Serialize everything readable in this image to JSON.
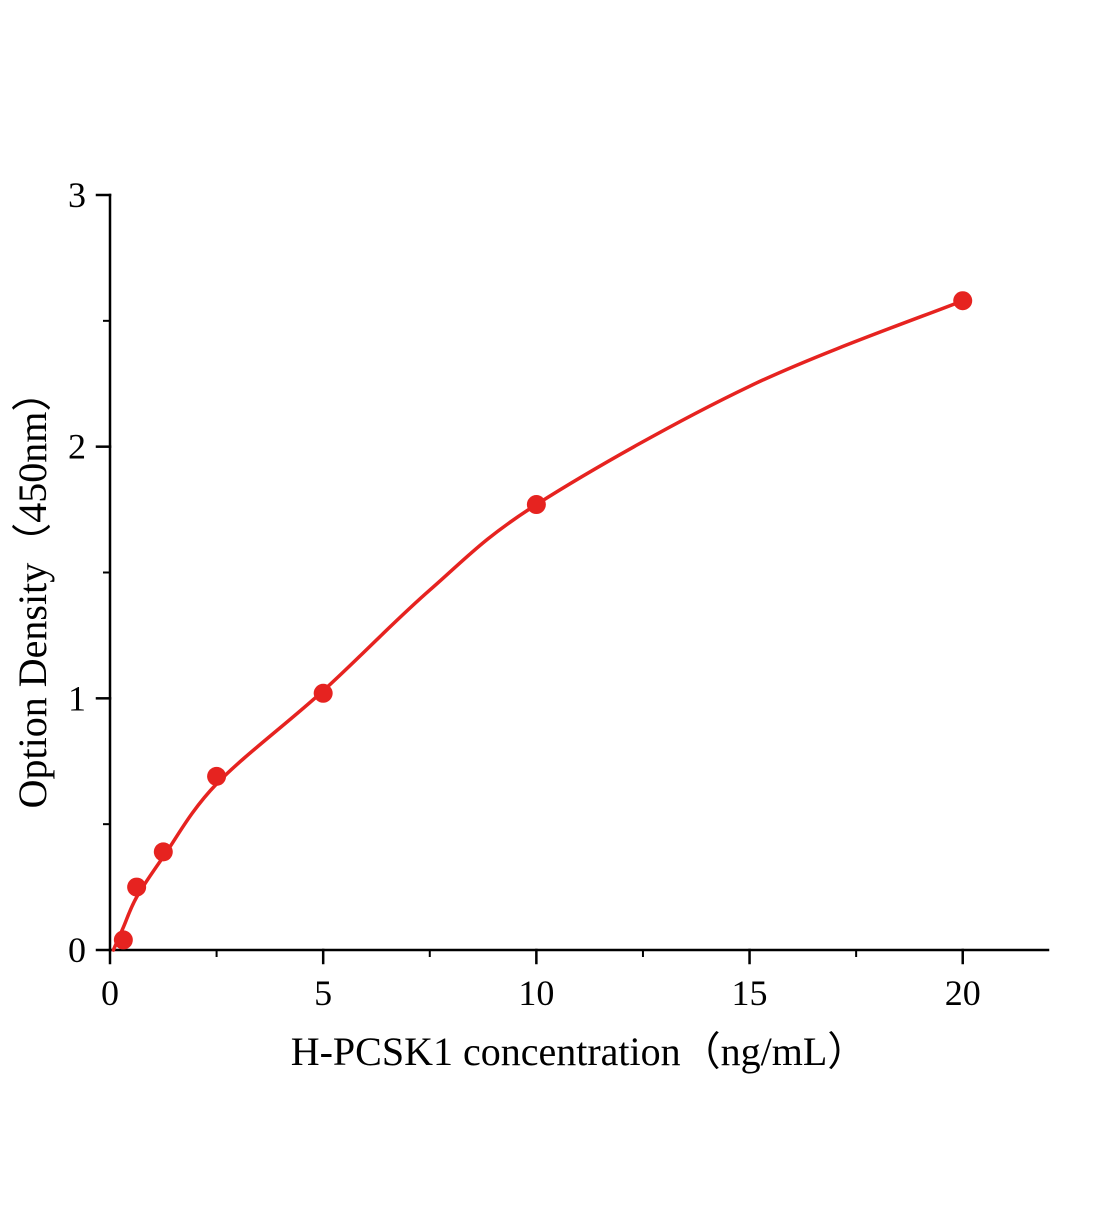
{
  "figure": {
    "background_color": "#ffffff",
    "accent_color": "#e62320"
  },
  "chart_data": {
    "type": "scatter",
    "title": "",
    "xlabel": "H-PCSK1 concentration（ng/mL）",
    "ylabel": "Option Density（450nm）",
    "xlim": [
      0,
      22
    ],
    "ylim": [
      0,
      3
    ],
    "x_ticks": [
      0,
      5,
      10,
      15,
      20
    ],
    "x_minor_ticks": [
      2.5,
      7.5,
      12.5,
      17.5
    ],
    "y_ticks": [
      0,
      1,
      2,
      3
    ],
    "y_minor_ticks": [
      0.5,
      1.5,
      2.5
    ],
    "grid": false,
    "legend_position": "none",
    "series": [
      {
        "name": "fitted-standard-curve",
        "type": "line",
        "color": "#e62320",
        "stroke_width": 3.5,
        "x": [
          0.08,
          0.313,
          0.625,
          1.25,
          2.5,
          5,
          7.5,
          10,
          15,
          20
        ],
        "y": [
          0.0,
          0.09,
          0.21,
          0.37,
          0.66,
          1.03,
          1.43,
          1.77,
          2.24,
          2.58
        ]
      },
      {
        "name": "standard-data-points",
        "type": "scatter",
        "color": "#e62320",
        "marker": "circle",
        "marker_radius": 9.5,
        "x": [
          0.313,
          0.625,
          1.25,
          2.5,
          5,
          10,
          20
        ],
        "y": [
          0.04,
          0.25,
          0.39,
          0.69,
          1.02,
          1.77,
          2.58
        ]
      }
    ]
  }
}
